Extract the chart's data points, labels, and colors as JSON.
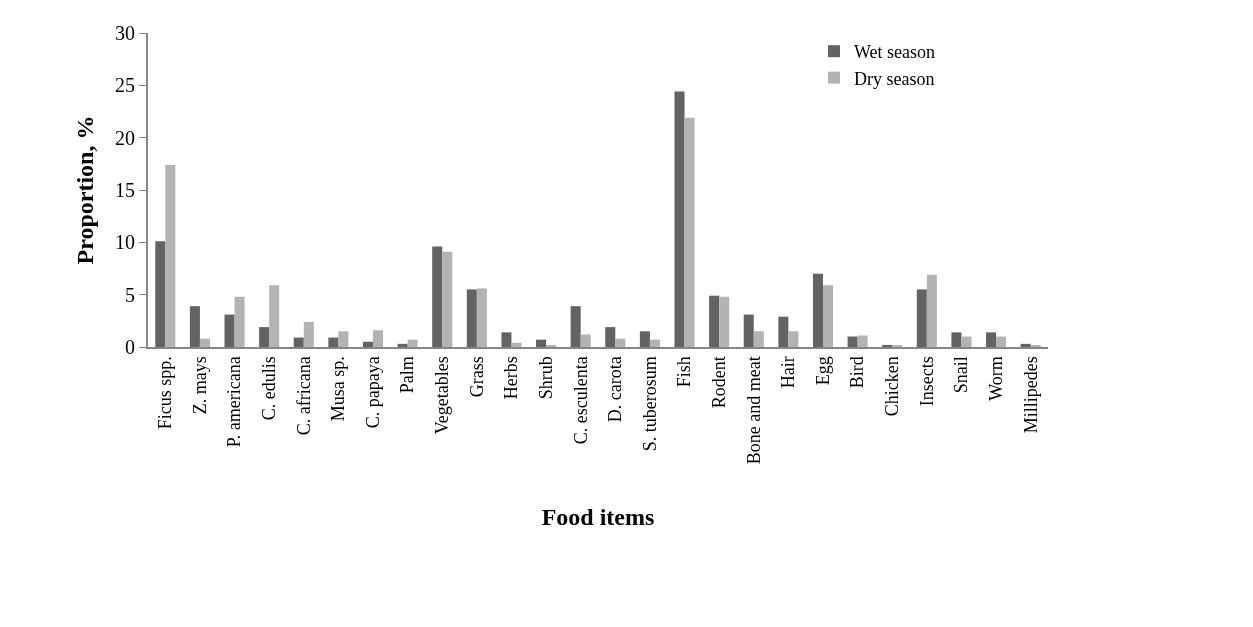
{
  "chart_data": {
    "type": "bar",
    "xlabel": "Food items",
    "ylabel": "Proportion, %",
    "categories": [
      "Ficus spp.",
      "Z. mays",
      "P. americana",
      "C. edulis",
      "C. africana",
      "Musa sp.",
      "C. papaya",
      "Palm",
      "Vegetables",
      "Grass",
      "Herbs",
      "Shrub",
      "C. esculenta",
      "D. carota",
      "S. tuberosum",
      "Fish",
      "Rodent",
      "Bone and meat",
      "Hair",
      "Egg",
      "Bird",
      "Chicken",
      "Insects",
      "Snail",
      "Worm",
      "Millipedes"
    ],
    "series": [
      {
        "name": "Wet season",
        "color": "#636363",
        "values": [
          10.1,
          3.9,
          3.1,
          1.9,
          0.9,
          0.9,
          0.5,
          0.3,
          9.6,
          5.5,
          1.4,
          0.7,
          3.9,
          1.9,
          1.5,
          24.4,
          4.9,
          3.1,
          2.9,
          7.0,
          1.0,
          0.2,
          5.5,
          1.4,
          1.4,
          0.3
        ]
      },
      {
        "name": "Dry season",
        "color": "#b3b3b3",
        "values": [
          17.4,
          0.8,
          4.8,
          5.9,
          2.4,
          1.5,
          1.6,
          0.7,
          9.1,
          5.6,
          0.4,
          0.1,
          1.2,
          0.8,
          0.7,
          21.9,
          4.8,
          1.5,
          1.5,
          5.9,
          1.1,
          0.1,
          6.9,
          1.0,
          1.0,
          0.1
        ]
      }
    ],
    "ylim": [
      0,
      30
    ],
    "yticks": [
      0,
      5,
      10,
      15,
      20,
      25,
      30
    ],
    "legend": "top right"
  }
}
